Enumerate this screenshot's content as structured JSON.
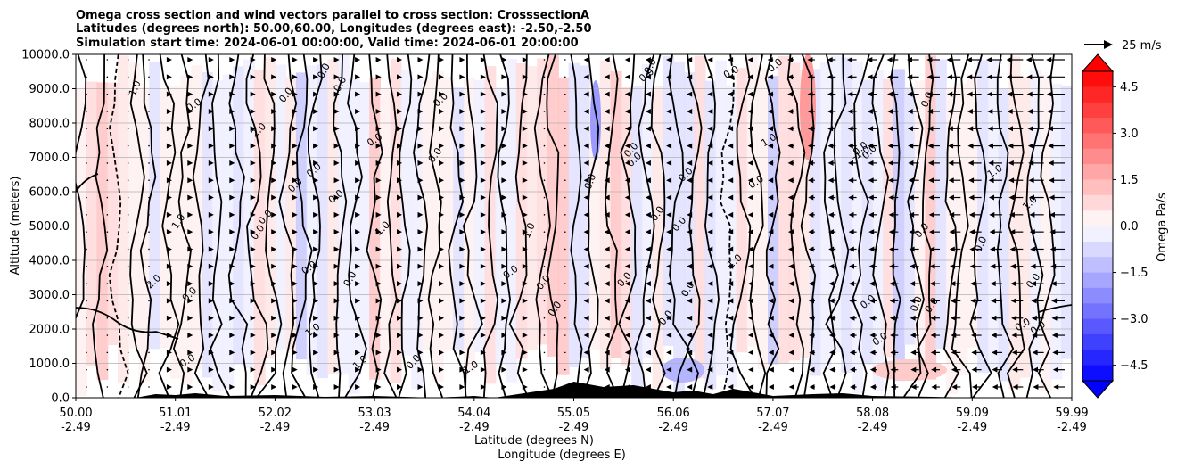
{
  "chart_data": {
    "type": "heatmap",
    "title_lines": [
      "Omega cross section and wind vectors parallel to cross section: CrosssectionA",
      "Latitudes (degrees north): 50.00,60.00, Longitudes (degrees east): -2.50,-2.50",
      "Simulation start time: 2024-06-01 00:00:00, Valid time: 2024-06-01 20:00:00"
    ],
    "ylabel": "Altitude (meters)",
    "xlabel_lines": [
      "Latitude (degrees N)",
      "Longitude (degrees E)"
    ],
    "y_ticks": [
      "0.0",
      "1000.0",
      "2000.0",
      "3000.0",
      "4000.0",
      "5000.0",
      "6000.0",
      "7000.0",
      "8000.0",
      "9000.0",
      "10000.0"
    ],
    "ylim": [
      0,
      10000
    ],
    "grid": "horizontal",
    "x_ticks": [
      {
        "lat": "50.00",
        "lon": "-2.49"
      },
      {
        "lat": "51.01",
        "lon": "-2.49"
      },
      {
        "lat": "52.02",
        "lon": "-2.49"
      },
      {
        "lat": "53.03",
        "lon": "-2.49"
      },
      {
        "lat": "54.04",
        "lon": "-2.49"
      },
      {
        "lat": "55.05",
        "lon": "-2.49"
      },
      {
        "lat": "56.06",
        "lon": "-2.49"
      },
      {
        "lat": "57.07",
        "lon": "-2.49"
      },
      {
        "lat": "58.08",
        "lon": "-2.49"
      },
      {
        "lat": "59.09",
        "lon": "-2.49"
      },
      {
        "lat": "59.99",
        "lon": "-2.49"
      }
    ],
    "colorbar": {
      "label": "Omega Pa/s",
      "ticks": [
        "4.5",
        "3.0",
        "1.5",
        "0.0",
        "−1.5",
        "−3.0",
        "−4.5"
      ],
      "range": [
        -5,
        5
      ],
      "extend": "both",
      "colormap": "bwr"
    },
    "quiver_key": "25 m/s",
    "contour_labels": [
      "0.0",
      "1.0",
      "2.0",
      "-1.0"
    ],
    "colors": {
      "positive": "#ff0000",
      "negative": "#0000ff",
      "neutral": "#ffffff",
      "terrain": "#000000"
    }
  }
}
